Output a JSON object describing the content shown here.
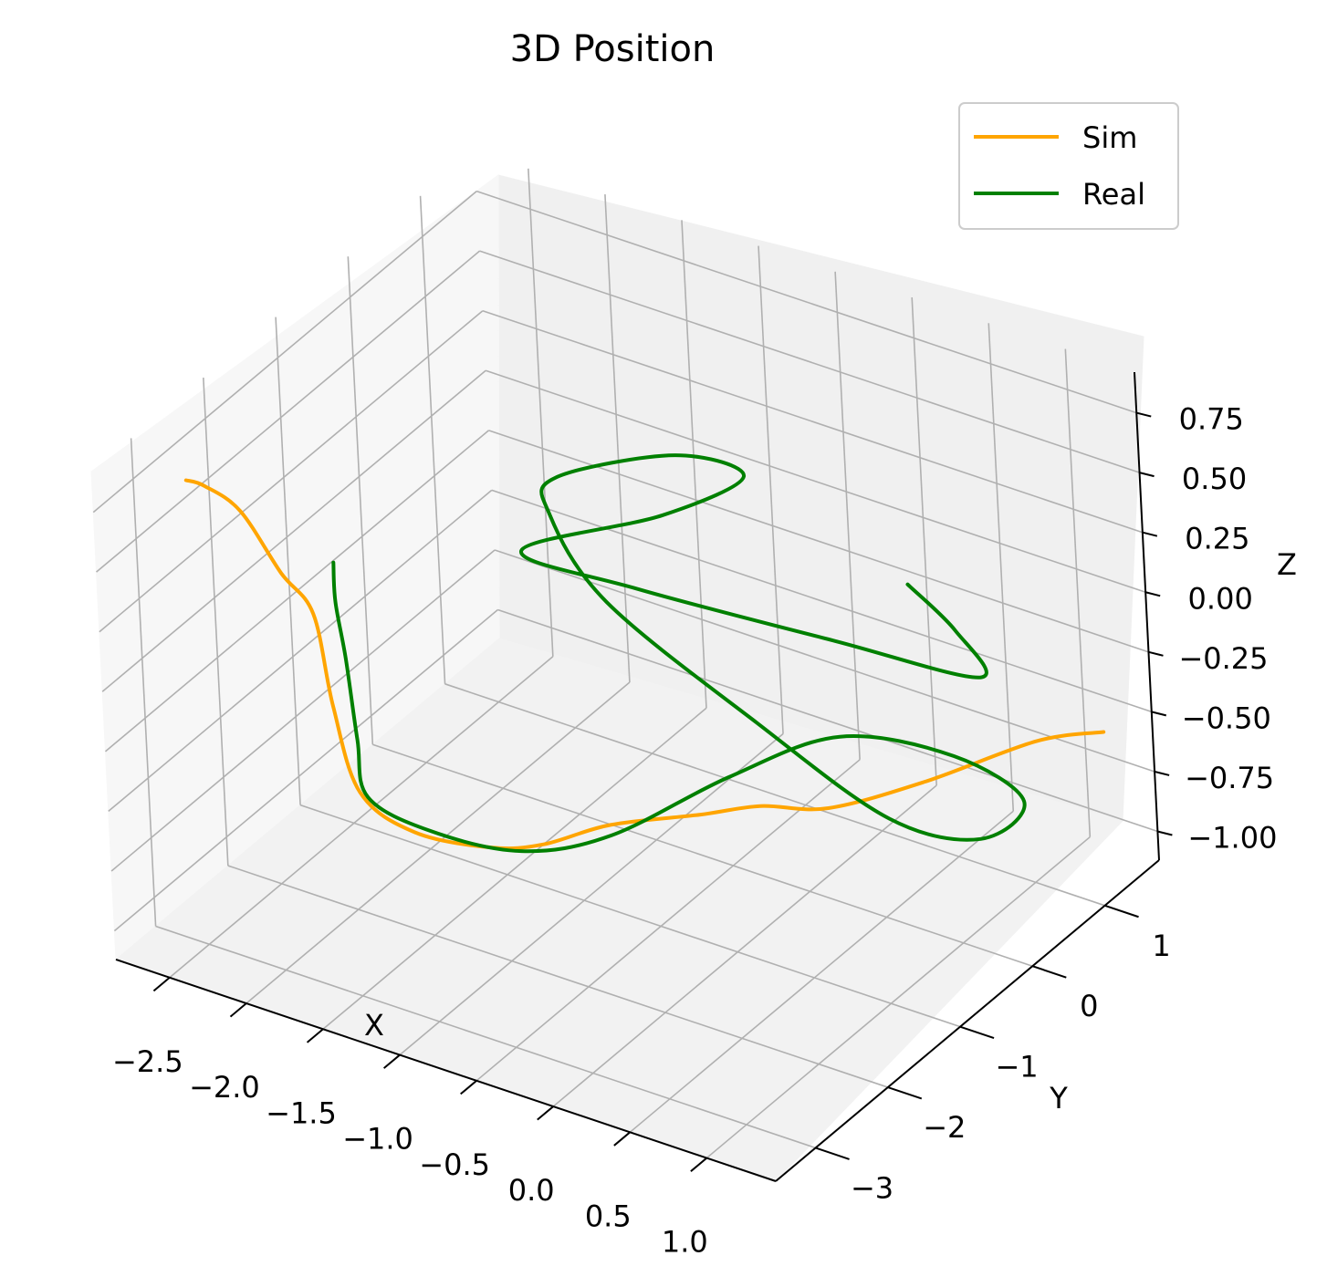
{
  "chart_data": {
    "type": "line",
    "projection": "3d",
    "title": "3D Position",
    "xlabel": "X",
    "ylabel": "Y",
    "zlabel": "Z",
    "grid": true,
    "legend": "upper-right",
    "xlim": [
      -2.85,
      1.45
    ],
    "ylim": [
      -3.55,
      1.75
    ],
    "zlim": [
      -1.12,
      0.92
    ],
    "xticks": [
      "−2.5",
      "−2.0",
      "−1.5",
      "−1.0",
      "−0.5",
      "0.0",
      "0.5",
      "1.0"
    ],
    "yticks": [
      "−3",
      "−2",
      "−1",
      "0",
      "1"
    ],
    "zticks": [
      "−1.00",
      "−0.75",
      "−0.50",
      "−0.25",
      "0.00",
      "0.25",
      "0.50",
      "0.75"
    ],
    "series": [
      {
        "name": "Sim",
        "color": "#ffa500",
        "points": [
          [
            -2.5,
            -3.0,
            0.82
          ],
          [
            -2.48,
            -2.8,
            0.75
          ],
          [
            -2.45,
            -2.4,
            0.55
          ],
          [
            -2.4,
            -2.0,
            0.2
          ],
          [
            -2.3,
            -1.8,
            0.0
          ],
          [
            -2.25,
            -1.7,
            -0.4
          ],
          [
            -2.2,
            -1.5,
            -0.8
          ],
          [
            -2.0,
            -1.2,
            -1.0
          ],
          [
            -1.7,
            -0.8,
            -1.1
          ],
          [
            -1.5,
            -0.5,
            -1.12
          ],
          [
            -1.2,
            -0.2,
            -1.05
          ],
          [
            -0.7,
            0.0,
            -0.95
          ],
          [
            -0.4,
            0.2,
            -0.9
          ],
          [
            -0.1,
            0.5,
            -0.92
          ],
          [
            0.3,
            1.0,
            -0.85
          ],
          [
            0.8,
            1.5,
            -0.7
          ],
          [
            1.2,
            1.6,
            -0.6
          ]
        ]
      },
      {
        "name": "Real",
        "color": "#008000",
        "points": [
          [
            -1.8,
            -2.5,
            0.5
          ],
          [
            -1.85,
            -2.4,
            0.3
          ],
          [
            -1.9,
            -2.2,
            0.0
          ],
          [
            -1.95,
            -2.0,
            -0.4
          ],
          [
            -2.0,
            -1.8,
            -0.7
          ],
          [
            -1.8,
            -1.4,
            -0.9
          ],
          [
            -1.4,
            -1.0,
            -1.0
          ],
          [
            -1.0,
            -0.6,
            -0.95
          ],
          [
            -0.5,
            0.0,
            -0.75
          ],
          [
            0.0,
            0.5,
            -0.6
          ],
          [
            0.5,
            1.0,
            -0.7
          ],
          [
            0.8,
            1.3,
            -0.9
          ],
          [
            0.6,
            1.1,
            -1.05
          ],
          [
            0.2,
            0.7,
            -0.95
          ],
          [
            -0.4,
            0.2,
            -0.55
          ],
          [
            -1.0,
            -0.5,
            0.0
          ],
          [
            -1.2,
            -0.8,
            0.4
          ],
          [
            -1.1,
            -0.9,
            0.6
          ],
          [
            -0.6,
            -0.3,
            0.65
          ],
          [
            -0.3,
            0.0,
            0.55
          ],
          [
            -0.6,
            -0.5,
            0.45
          ],
          [
            -1.2,
            -1.2,
            0.35
          ],
          [
            -0.8,
            -0.5,
            0.1
          ],
          [
            0.0,
            0.5,
            -0.2
          ],
          [
            0.6,
            1.2,
            -0.4
          ],
          [
            0.5,
            1.1,
            -0.2
          ],
          [
            0.3,
            0.9,
            0.0
          ]
        ]
      }
    ]
  }
}
